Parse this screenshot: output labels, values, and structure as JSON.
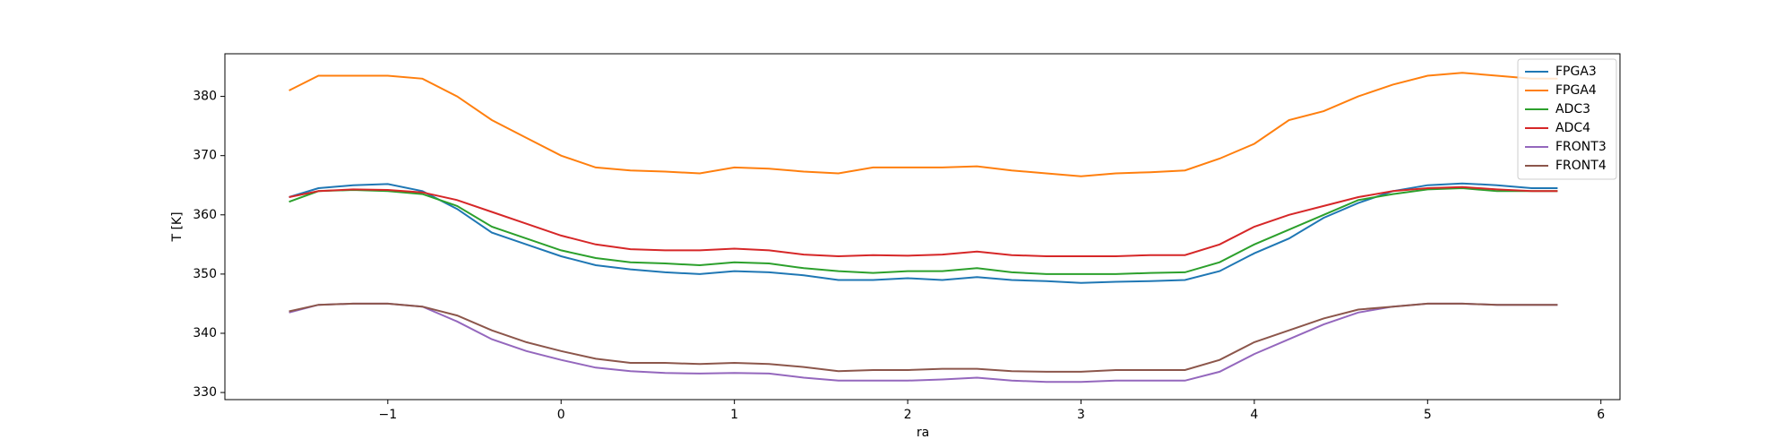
{
  "chart_data": {
    "type": "line",
    "xlabel": "ra",
    "ylabel": "T [K]",
    "x": [
      -1.57,
      -1.4,
      -1.2,
      -1.0,
      -0.8,
      -0.6,
      -0.4,
      -0.2,
      0,
      0.2,
      0.4,
      0.6,
      0.8,
      1.0,
      1.2,
      1.4,
      1.6,
      1.8,
      2.0,
      2.2,
      2.4,
      2.6,
      2.8,
      3.0,
      3.2,
      3.4,
      3.6,
      3.8,
      4.0,
      4.2,
      4.4,
      4.6,
      4.8,
      5.0,
      5.2,
      5.4,
      5.6,
      5.75
    ],
    "series": [
      {
        "name": "FPGA3",
        "color": "#1f77b4",
        "values": [
          363,
          364.5,
          365,
          365.2,
          364,
          361,
          357,
          355,
          353,
          351.5,
          350.8,
          350.3,
          350,
          350.5,
          350.3,
          349.8,
          349,
          349,
          349.3,
          349,
          349.5,
          349,
          348.8,
          348.5,
          348.7,
          348.8,
          349,
          350.5,
          353.5,
          356,
          359.5,
          362,
          364,
          365,
          365.3,
          365,
          364.5,
          364.5
        ]
      },
      {
        "name": "FPGA4",
        "color": "#ff7f0e",
        "values": [
          381,
          383.5,
          383.5,
          383.5,
          383,
          380,
          376,
          373,
          370,
          368,
          367.5,
          367.3,
          367,
          368,
          367.8,
          367.3,
          367,
          368,
          368,
          368,
          368.2,
          367.5,
          367,
          366.5,
          367,
          367.2,
          367.5,
          369.5,
          372,
          376,
          377.5,
          380,
          382,
          383.5,
          384,
          383.5,
          383,
          383
        ]
      },
      {
        "name": "ADC3",
        "color": "#2ca02c",
        "values": [
          362.2,
          364,
          364.2,
          364,
          363.5,
          361.5,
          358,
          356,
          354,
          352.7,
          352,
          351.8,
          351.5,
          352,
          351.8,
          351,
          350.5,
          350.2,
          350.5,
          350.5,
          351,
          350.3,
          350,
          350,
          350,
          350.2,
          350.3,
          352,
          355,
          357.5,
          360,
          362.5,
          363.5,
          364.3,
          364.5,
          364,
          364,
          364
        ]
      },
      {
        "name": "ADC4",
        "color": "#d62728",
        "values": [
          363,
          364,
          364.3,
          364.2,
          363.8,
          362.5,
          360.5,
          358.5,
          356.5,
          355,
          354.2,
          354,
          354,
          354.3,
          354,
          353.3,
          353,
          353.2,
          353.1,
          353.3,
          353.8,
          353.2,
          353,
          353,
          353,
          353.2,
          353.2,
          355,
          358,
          360,
          361.5,
          363,
          364,
          364.5,
          364.7,
          364.3,
          364,
          364
        ]
      },
      {
        "name": "FRONT3",
        "color": "#9467bd",
        "values": [
          343.5,
          344.8,
          345,
          345,
          344.5,
          342,
          339,
          337,
          335.5,
          334.2,
          333.6,
          333.3,
          333.2,
          333.3,
          333.2,
          332.5,
          332,
          332,
          332,
          332.2,
          332.5,
          332,
          331.8,
          331.8,
          332,
          332,
          332,
          333.5,
          336.5,
          339,
          341.5,
          343.5,
          344.5,
          345,
          345,
          344.8,
          344.8,
          344.8
        ]
      },
      {
        "name": "FRONT4",
        "color": "#8c564b",
        "values": [
          343.7,
          344.8,
          345,
          345,
          344.5,
          343,
          340.5,
          338.5,
          337,
          335.7,
          335,
          335,
          334.8,
          335,
          334.8,
          334.3,
          333.6,
          333.8,
          333.8,
          334,
          334,
          333.6,
          333.5,
          333.5,
          333.8,
          333.8,
          333.8,
          335.5,
          338.5,
          340.5,
          342.5,
          344,
          344.5,
          345,
          345,
          344.8,
          344.8,
          344.8
        ]
      }
    ],
    "xlim": [
      -1.94,
      6.11
    ],
    "ylim": [
      328.8,
      387.2
    ],
    "xticks": [
      {
        "value": -1,
        "label": "−1"
      },
      0,
      1,
      2,
      3,
      4,
      5,
      6
    ],
    "yticks": [
      330,
      340,
      350,
      360,
      370,
      380
    ],
    "legend": "upper right"
  }
}
